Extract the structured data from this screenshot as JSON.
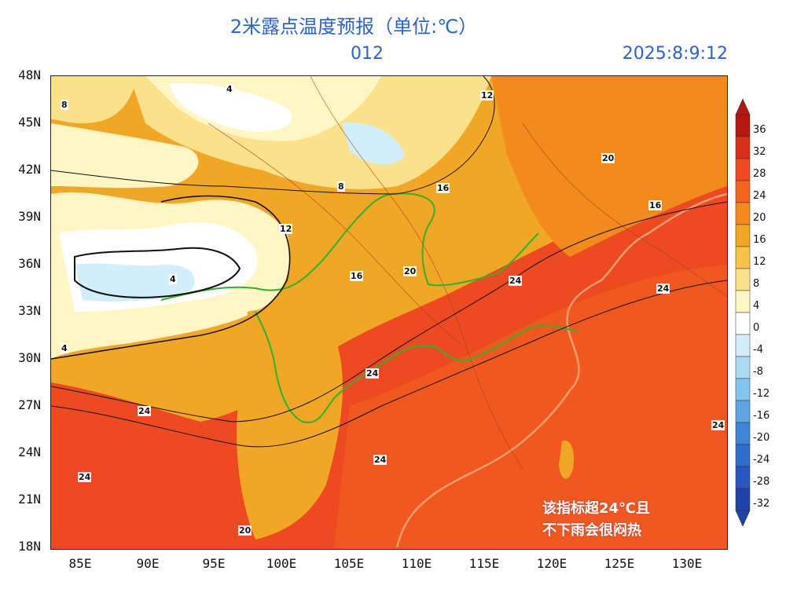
{
  "title": "2米露点温度预报（单位:℃）",
  "forecast_hour": "012",
  "valid_time": "2025:8:9:12",
  "lat_labels": [
    "48N",
    "45N",
    "42N",
    "39N",
    "36N",
    "33N",
    "30N",
    "27N",
    "24N",
    "21N",
    "18N"
  ],
  "lon_labels": [
    "85E",
    "90E",
    "95E",
    "100E",
    "105E",
    "110E",
    "115E",
    "120E",
    "125E",
    "130E"
  ],
  "colorbar": {
    "levels": [
      "36",
      "32",
      "28",
      "24",
      "20",
      "16",
      "12",
      "8",
      "4",
      "0",
      "-4",
      "-8",
      "-12",
      "-16",
      "-20",
      "-24",
      "-28",
      "-32"
    ],
    "colors": [
      "#b5180e",
      "#d9301a",
      "#ee4a22",
      "#f4641e",
      "#f28a1e",
      "#f2a626",
      "#f7c44a",
      "#fbe189",
      "#fff6c4",
      "#ffffff",
      "#d2eef8",
      "#a9dcf3",
      "#82c4ec",
      "#5ca5e2",
      "#3d86d6",
      "#2e6ccc",
      "#2857bd",
      "#1f44a8"
    ]
  },
  "contour_labels": [
    "4",
    "8",
    "12",
    "16",
    "20",
    "24"
  ],
  "annotation_line1": "该指标超24℃且",
  "annotation_line2": "不下雨会很闷热",
  "colors": {
    "title": "#2a62d8",
    "river": "#2ab52a",
    "coast": "#f0a070"
  }
}
